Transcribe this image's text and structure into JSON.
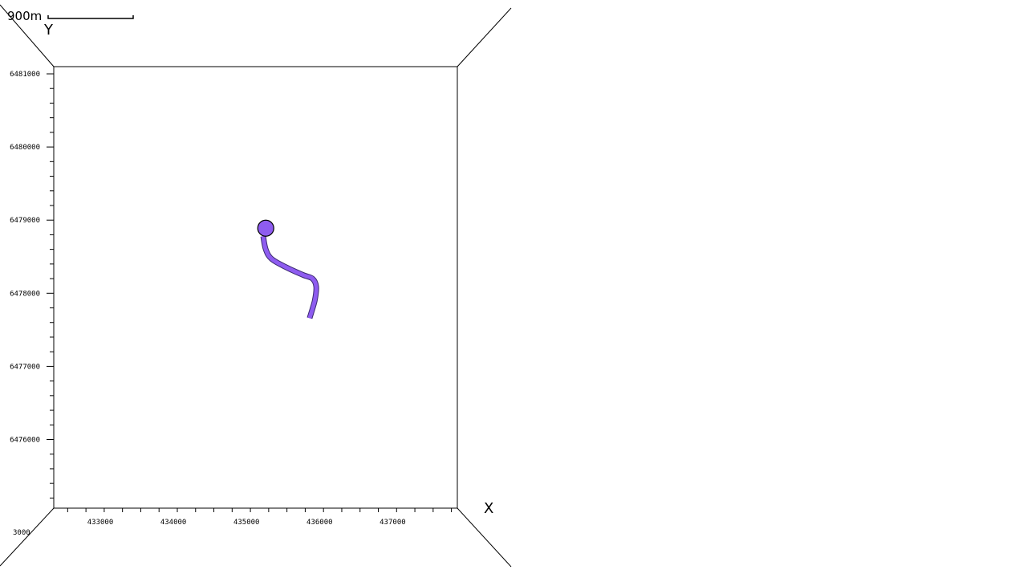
{
  "scale_bar": {
    "label": "900m"
  },
  "axes": {
    "x_title": "X",
    "y_title": "Y",
    "x_ticks": [
      "433000",
      "434000",
      "435000",
      "436000",
      "437000"
    ],
    "y_ticks": [
      "6481000",
      "6480000",
      "6479000",
      "6478000",
      "6477000",
      "6476000"
    ],
    "z_tick": "3000"
  },
  "well": {
    "color": "#8e5cf0",
    "head": {
      "x": 435110,
      "y": 6478890
    },
    "path": [
      {
        "x": 435075,
        "y": 6478780
      },
      {
        "x": 435110,
        "y": 6478600
      },
      {
        "x": 435190,
        "y": 6478470
      },
      {
        "x": 435400,
        "y": 6478350
      },
      {
        "x": 435620,
        "y": 6478250
      },
      {
        "x": 435750,
        "y": 6478200
      },
      {
        "x": 435800,
        "y": 6478090
      },
      {
        "x": 435780,
        "y": 6477900
      },
      {
        "x": 435710,
        "y": 6477660
      }
    ]
  }
}
